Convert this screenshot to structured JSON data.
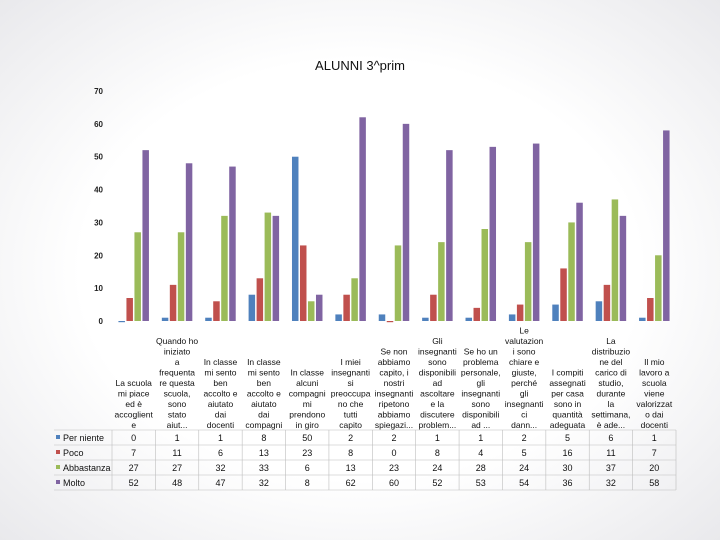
{
  "chart_data": {
    "type": "bar",
    "title": "ALUNNI 3^prim",
    "xlabel": "",
    "ylabel": "",
    "ylim": [
      0,
      70
    ],
    "yticks": [
      0,
      10,
      20,
      30,
      40,
      50,
      60,
      70
    ],
    "grid": false,
    "legend": "bottom-left data table",
    "categories": [
      "La scuola mi piace ed è accoglient e",
      "Quando ho iniziato a frequenta re questa scuola, sono stato aiut...",
      "In classe mi sento ben accolto e aiutato dai docenti",
      "In classe mi sento ben accolto e aiutato dai compagni",
      "In classe alcuni compagni mi prendono in giro",
      "I miei insegnanti si preoccupa no che tutti capito",
      "Se non abbiamo capito, i nostri insegnanti ripetono abbiamo spiegazi...",
      "Gli insegnanti sono disponibili ad ascoltare e la discutere problem...",
      "Se ho un problema personale, gli insegnanti sono disponibili ad ...",
      "Le valutazion i sono chiare e giuste, perché gli insegnanti ci dann...",
      "I compiti assegnati per casa sono in quantità adeguata",
      "La distribuzio ne del carico di studio, durante la settimana, è ade...",
      "Il mio lavoro a scuola viene valorizzat o dai docenti"
    ],
    "series": [
      {
        "name": "Per niente",
        "color": "#4f81bd",
        "values": [
          0,
          1,
          1,
          8,
          50,
          2,
          2,
          1,
          1,
          2,
          5,
          6,
          1
        ]
      },
      {
        "name": "Poco",
        "color": "#c0504d",
        "values": [
          7,
          11,
          6,
          13,
          23,
          8,
          0,
          8,
          4,
          5,
          16,
          11,
          7
        ]
      },
      {
        "name": "Abbastanza",
        "color": "#9bbb59",
        "values": [
          27,
          27,
          32,
          33,
          6,
          13,
          23,
          24,
          28,
          24,
          30,
          37,
          20
        ]
      },
      {
        "name": "Molto",
        "color": "#8064a2",
        "values": [
          52,
          48,
          47,
          32,
          8,
          62,
          60,
          52,
          53,
          54,
          36,
          32,
          58
        ]
      }
    ]
  }
}
